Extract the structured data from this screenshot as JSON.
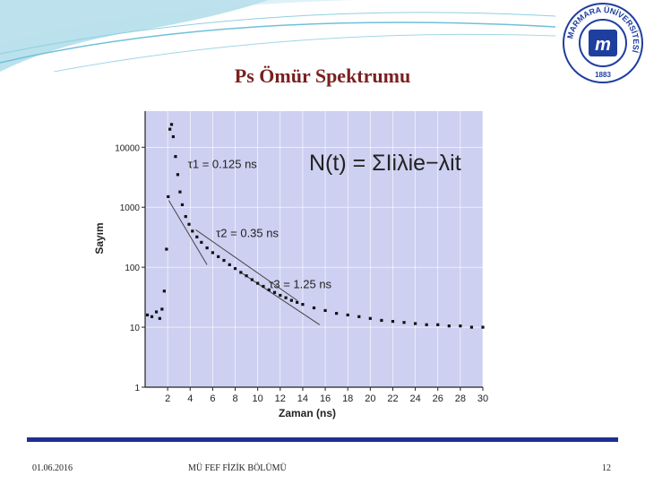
{
  "slide": {
    "title": "Ps Ömür Spektrumu",
    "footer_date": "01.06.2016",
    "footer_department": "MÜ FEF FİZİK BÖLÜMÜ",
    "page_number": "12",
    "logo_text": "MARMARA ÜNİVERSİTESİ",
    "logo_year": "1883"
  },
  "colors": {
    "title": "#7a1f1f",
    "plot_background": "#cdd0f0",
    "footer_bar": "#1f2f8f",
    "logo_blue": "#1f3f9f",
    "banner": "#3aa8c8"
  },
  "chart_data": {
    "type": "scatter",
    "xlabel": "Zaman (ns)",
    "ylabel": "Sayım",
    "xlim": [
      0,
      30
    ],
    "ylim": [
      1,
      40000
    ],
    "yscale": "log",
    "x_ticks": [
      2,
      4,
      6,
      8,
      10,
      12,
      14,
      16,
      18,
      20,
      22,
      24,
      26,
      28,
      30
    ],
    "y_ticks": [
      1,
      10,
      100,
      1000,
      10000
    ],
    "y_tick_labels": [
      "1",
      "10",
      "100",
      "1000",
      "10000"
    ],
    "formula": "N(t) = ΣIiλie−λit",
    "annotations": [
      {
        "text": "τ1 = 0.125 ns",
        "x": 3.8,
        "y": 4500
      },
      {
        "text": "τ2 = 0.35 ns",
        "x": 6.3,
        "y": 320
      },
      {
        "text": "τ3 = 1.25 ns",
        "x": 11,
        "y": 45
      }
    ],
    "fit_lines": [
      {
        "name": "τ1",
        "x": [
          2.1,
          5.5
        ],
        "y": [
          1300,
          110
        ]
      },
      {
        "name": "τ2",
        "x": [
          4.5,
          13.5
        ],
        "y": [
          420,
          28
        ]
      },
      {
        "name": "τ3",
        "x": [
          8.5,
          15.5
        ],
        "y": [
          82,
          11
        ]
      }
    ],
    "series": [
      {
        "name": "data",
        "x": [
          0.2,
          0.6,
          1.0,
          1.3,
          1.5,
          1.7,
          1.9,
          2.05,
          2.2,
          2.35,
          2.5,
          2.7,
          2.9,
          3.1,
          3.3,
          3.6,
          3.9,
          4.2,
          4.6,
          5.0,
          5.5,
          6.0,
          6.5,
          7.0,
          7.5,
          8.0,
          8.5,
          9.0,
          9.5,
          10,
          10.5,
          11,
          11.5,
          12,
          12.5,
          13,
          13.5,
          14,
          15,
          16,
          17,
          18,
          19,
          20,
          21,
          22,
          23,
          24,
          25,
          26,
          27,
          28,
          29,
          30
        ],
        "y": [
          16,
          15,
          18,
          14,
          20,
          40,
          200,
          1500,
          20000,
          24000,
          15000,
          7000,
          3500,
          1800,
          1100,
          700,
          520,
          400,
          320,
          260,
          210,
          175,
          150,
          130,
          110,
          95,
          82,
          72,
          62,
          54,
          48,
          42,
          38,
          34,
          31,
          28,
          26,
          24,
          21,
          19,
          17,
          16,
          15,
          14,
          13,
          12.5,
          12,
          11.5,
          11,
          11,
          10.5,
          10.5,
          10,
          10
        ]
      }
    ]
  }
}
